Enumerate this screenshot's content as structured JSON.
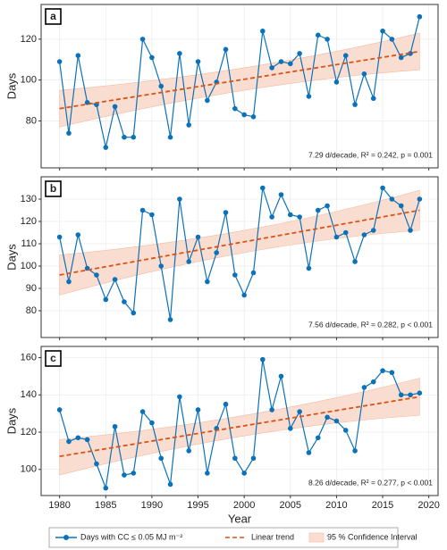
{
  "chart_data": [
    {
      "type": "line",
      "panel_label": "a",
      "ylabel": "Days",
      "x": [
        1980,
        1981,
        1982,
        1983,
        1984,
        1985,
        1986,
        1987,
        1988,
        1989,
        1990,
        1991,
        1992,
        1993,
        1994,
        1995,
        1996,
        1997,
        1998,
        1999,
        2000,
        2001,
        2002,
        2003,
        2004,
        2005,
        2006,
        2007,
        2008,
        2009,
        2010,
        2011,
        2012,
        2013,
        2014,
        2015,
        2016,
        2017,
        2018,
        2019
      ],
      "series": [
        {
          "name": "Days with CC ≤ 0.05 MJ m⁻²",
          "color": "#0b72b9",
          "values": [
            109,
            74,
            112,
            89,
            88,
            67,
            87,
            72,
            72,
            120,
            111,
            97,
            72,
            113,
            78,
            109,
            90,
            99,
            115,
            86,
            83,
            82,
            124,
            106,
            109,
            108,
            113,
            92,
            122,
            120,
            99,
            112,
            88,
            103,
            91,
            124,
            120,
            111,
            113,
            131
          ]
        }
      ],
      "trend": {
        "name": "Linear trend",
        "color": "#d95319",
        "x": [
          1980,
          2019
        ],
        "values": [
          86,
          114
        ]
      },
      "ci": {
        "name": "95 % Confidence Interval",
        "color": "#f9ddd0",
        "x": [
          1980,
          2000,
          2019
        ],
        "lower": [
          77,
          95,
          105
        ],
        "upper": [
          95,
          106,
          123
        ]
      },
      "annotation": "7.29 d/decade, R² = 0.242, p = 0.001",
      "xlim": [
        1978,
        2021
      ],
      "xticks": [
        1980,
        1985,
        1990,
        1995,
        2000,
        2005,
        2010,
        2015,
        2020
      ],
      "xticklabels": false,
      "ylim": [
        57,
        137
      ],
      "yticks": [
        80,
        100,
        120
      ],
      "grid": true
    },
    {
      "type": "line",
      "panel_label": "b",
      "ylabel": "Days",
      "x": [
        1980,
        1981,
        1982,
        1983,
        1984,
        1985,
        1986,
        1987,
        1988,
        1989,
        1990,
        1991,
        1992,
        1993,
        1994,
        1995,
        1996,
        1997,
        1998,
        1999,
        2000,
        2001,
        2002,
        2003,
        2004,
        2005,
        2006,
        2007,
        2008,
        2009,
        2010,
        2011,
        2012,
        2013,
        2014,
        2015,
        2016,
        2017,
        2018,
        2019
      ],
      "series": [
        {
          "color": "#0b72b9",
          "values": [
            113,
            93,
            114,
            99,
            96,
            85,
            94,
            84,
            79,
            125,
            123,
            100,
            76,
            130,
            102,
            113,
            93,
            106,
            124,
            96,
            87,
            97,
            135,
            122,
            132,
            123,
            122,
            99,
            125,
            127,
            113,
            115,
            102,
            114,
            116,
            135,
            130,
            127,
            116,
            130
          ]
        }
      ],
      "trend": {
        "color": "#d95319",
        "x": [
          1980,
          2019
        ],
        "values": [
          96,
          125
        ]
      },
      "ci": {
        "color": "#f9ddd0",
        "x": [
          1980,
          2000,
          2019
        ],
        "lower": [
          87,
          106,
          116
        ],
        "upper": [
          105,
          116,
          134
        ]
      },
      "annotation": "7.56 d/decade, R² = 0.282, p < 0.001",
      "xlim": [
        1978,
        2021
      ],
      "xticks": [
        1980,
        1985,
        1990,
        1995,
        2000,
        2005,
        2010,
        2015,
        2020
      ],
      "xticklabels": false,
      "ylim": [
        68,
        140
      ],
      "yticks": [
        80,
        90,
        100,
        110,
        120,
        130
      ],
      "grid": true
    },
    {
      "type": "line",
      "panel_label": "c",
      "ylabel": "Days",
      "xlabel": "Year",
      "x": [
        1980,
        1981,
        1982,
        1983,
        1984,
        1985,
        1986,
        1987,
        1988,
        1989,
        1990,
        1991,
        1992,
        1993,
        1994,
        1995,
        1996,
        1997,
        1998,
        1999,
        2000,
        2001,
        2002,
        2003,
        2004,
        2005,
        2006,
        2007,
        2008,
        2009,
        2010,
        2011,
        2012,
        2013,
        2014,
        2015,
        2016,
        2017,
        2018,
        2019
      ],
      "series": [
        {
          "color": "#0b72b9",
          "values": [
            132,
            115,
            117,
            116,
            103,
            90,
            123,
            97,
            98,
            131,
            125,
            106,
            92,
            139,
            110,
            132,
            98,
            122,
            135,
            106,
            98,
            106,
            159,
            132,
            150,
            122,
            131,
            109,
            117,
            128,
            126,
            121,
            110,
            144,
            147,
            153,
            152,
            140,
            140,
            141
          ]
        }
      ],
      "trend": {
        "color": "#d95319",
        "x": [
          1980,
          2019
        ],
        "values": [
          107,
          139
        ]
      },
      "ci": {
        "color": "#f9ddd0",
        "x": [
          1980,
          2000,
          2019
        ],
        "lower": [
          97,
          118,
          129
        ],
        "upper": [
          116,
          129,
          149
        ]
      },
      "annotation": "8.26 d/decade, R² = 0.277, p < 0.001",
      "xlim": [
        1978,
        2021
      ],
      "xticks": [
        1980,
        1985,
        1990,
        1995,
        2000,
        2005,
        2010,
        2015,
        2020
      ],
      "xticklabels": true,
      "ylim": [
        86,
        166
      ],
      "yticks": [
        100,
        120,
        140,
        160
      ],
      "grid": true
    }
  ]
}
